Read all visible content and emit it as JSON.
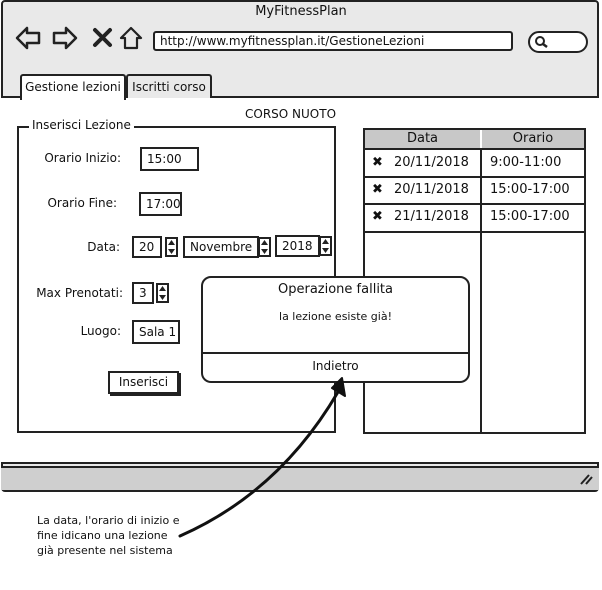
{
  "browser": {
    "title": "MyFitnessPlan",
    "url": "http://www.myfitnessplan.it/GestioneLezioni",
    "icons": [
      "back-arrow-icon",
      "forward-arrow-icon",
      "close-icon",
      "home-icon",
      "search-icon"
    ]
  },
  "tabs": [
    {
      "label": "Gestione lezioni",
      "active": true
    },
    {
      "label": "Iscritti corso",
      "active": false
    }
  ],
  "course_title": "CORSO NUOTO",
  "form": {
    "legend": "Inserisci Lezione",
    "start_time_label": "Orario Inizio:",
    "start_time_value": "15:00",
    "end_time_label": "Orario Fine:",
    "end_time_value": "17:00",
    "date_label": "Data:",
    "date_day": "20",
    "date_month": "Novembre",
    "date_year": "2018",
    "max_label": "Max Prenotati:",
    "max_value": "3",
    "place_label": "Luogo:",
    "place_value": "Sala 1",
    "submit_label": "Inserisci"
  },
  "lessons_table": {
    "headers": [
      "Data",
      "Orario"
    ],
    "rows": [
      {
        "date": "20/11/2018",
        "time": "9:00-11:00"
      },
      {
        "date": "20/11/2018",
        "time": "15:00-17:00"
      },
      {
        "date": "21/11/2018",
        "time": "15:00-17:00"
      }
    ]
  },
  "modal": {
    "title": "Operazione fallita",
    "message": "la lezione esiste già!",
    "button": "Indietro"
  },
  "annotation": {
    "lines": [
      "La data, l'orario di inizio e",
      "fine idicano una lezione",
      "già presente nel sistema"
    ]
  }
}
